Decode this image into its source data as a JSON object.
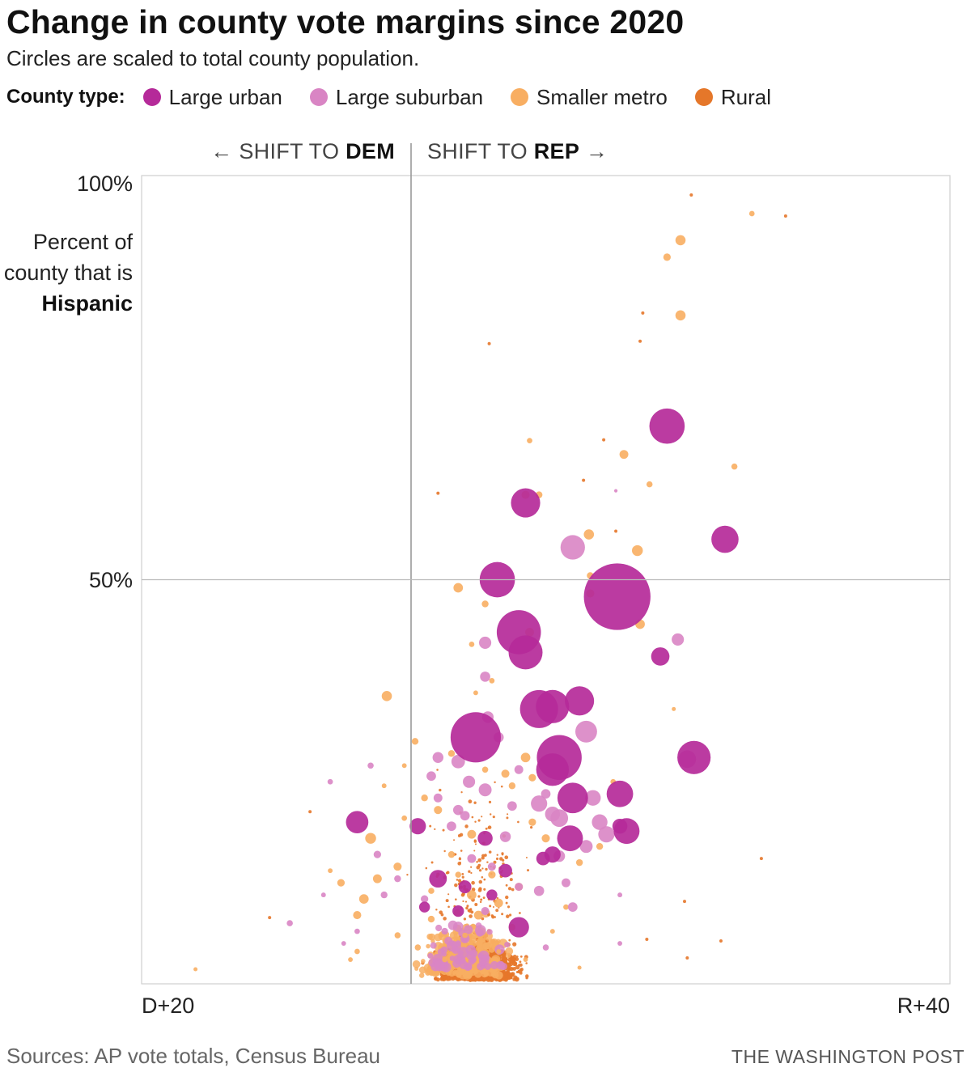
{
  "header": {
    "title": "Change in county vote margins since 2020",
    "subtitle": "Circles are scaled to total county population."
  },
  "legend": {
    "label": "County type:",
    "items": [
      {
        "label": "Large urban",
        "color": "#b52a99"
      },
      {
        "label": "Large suburban",
        "color": "#d985c4"
      },
      {
        "label": "Smaller metro",
        "color": "#f8ae62"
      },
      {
        "label": "Rural",
        "color": "#e5772a"
      }
    ]
  },
  "annotations": {
    "shift_dem_prefix": "← SHIFT TO ",
    "shift_dem_bold": "DEM",
    "shift_rep_prefix": "SHIFT TO ",
    "shift_rep_bold": "REP",
    "shift_rep_arrow": " →"
  },
  "footer": {
    "source": "Sources: AP vote totals, Census Bureau",
    "credit": "THE WASHINGTON POST"
  },
  "chart_data": {
    "type": "scatter",
    "title": "Change in county vote margins since 2020",
    "subtitle": "Circles are scaled to total county population.",
    "ylabel_pre": "Percent of county that is ",
    "ylabel_bold": "Hispanic",
    "xlim": [
      -20,
      40
    ],
    "ylim": [
      0,
      100
    ],
    "x_ticks": [
      {
        "value": -20,
        "label": "D+20"
      },
      {
        "value": 40,
        "label": "R+40"
      }
    ],
    "y_ticks": [
      {
        "value": 100,
        "label": "100%"
      },
      {
        "value": 50,
        "label": "50%"
      }
    ],
    "reference_lines": {
      "x": 0,
      "y": 50
    },
    "size_scale": "area proportional to total county population",
    "series": [
      {
        "name": "Large urban",
        "color": "#b52a99",
        "points": [
          [
            15.3,
            47.9,
            9.8
          ],
          [
            8.0,
            43.5,
            6.5
          ],
          [
            19.0,
            69.0,
            5.2
          ],
          [
            6.4,
            50.0,
            5.2
          ],
          [
            8.5,
            41.0,
            5.0
          ],
          [
            4.8,
            30.5,
            7.4
          ],
          [
            9.5,
            34.0,
            5.6
          ],
          [
            10.5,
            34.3,
            4.9
          ],
          [
            11.0,
            28.0,
            6.6
          ],
          [
            10.5,
            26.5,
            4.8
          ],
          [
            12.0,
            23.0,
            4.5
          ],
          [
            21.0,
            28.0,
            4.9
          ],
          [
            23.3,
            55.0,
            4.0
          ],
          [
            8.5,
            59.5,
            4.3
          ],
          [
            15.5,
            23.5,
            3.9
          ],
          [
            16.0,
            18.9,
            3.8
          ],
          [
            18.5,
            40.5,
            2.7
          ],
          [
            -4.0,
            20.0,
            3.3
          ],
          [
            11.8,
            18.0,
            3.8
          ],
          [
            12.5,
            35.0,
            4.3
          ],
          [
            10.5,
            16.0,
            2.4
          ],
          [
            8.0,
            7.0,
            3.0
          ],
          [
            0.5,
            19.5,
            2.4
          ],
          [
            5.5,
            18.0,
            2.2
          ],
          [
            2.0,
            13.0,
            2.6
          ],
          [
            7.0,
            14.0,
            2.0
          ],
          [
            15.5,
            19.5,
            2.2
          ],
          [
            9.8,
            15.5,
            2.0
          ],
          [
            4.0,
            12.0,
            1.9
          ],
          [
            6.0,
            11.0,
            1.6
          ],
          [
            1.0,
            9.5,
            1.6
          ],
          [
            3.5,
            9.0,
            1.7
          ]
        ]
      },
      {
        "name": "Large suburban",
        "color": "#d985c4",
        "points": [
          [
            12.0,
            54.0,
            3.6
          ],
          [
            13.0,
            31.2,
            3.2
          ],
          [
            20.5,
            27.8,
            2.6
          ],
          [
            19.8,
            42.6,
            1.8
          ],
          [
            14.0,
            20.0,
            2.3
          ],
          [
            13.5,
            23.0,
            2.3
          ],
          [
            10.5,
            21.0,
            2.2
          ],
          [
            14.5,
            18.5,
            2.4
          ],
          [
            11.0,
            20.5,
            2.6
          ],
          [
            9.5,
            22.3,
            2.4
          ],
          [
            5.5,
            24.0,
            1.9
          ],
          [
            3.5,
            27.5,
            2.0
          ],
          [
            4.3,
            25.0,
            1.8
          ],
          [
            2.0,
            28.0,
            1.6
          ],
          [
            1.5,
            25.7,
            1.4
          ],
          [
            5.5,
            42.2,
            1.8
          ],
          [
            5.5,
            38.0,
            1.5
          ],
          [
            5.7,
            33.0,
            1.7
          ],
          [
            13.0,
            17.0,
            1.9
          ],
          [
            11.0,
            15.8,
            1.7
          ],
          [
            9.5,
            11.5,
            1.5
          ],
          [
            7.0,
            18.2,
            1.6
          ],
          [
            3.5,
            21.5,
            1.5
          ],
          [
            2.0,
            23.0,
            1.3
          ],
          [
            4.0,
            20.8,
            1.4
          ],
          [
            12.0,
            9.5,
            1.4
          ],
          [
            11.5,
            12.5,
            1.3
          ],
          [
            -3.0,
            27.0,
            0.9
          ],
          [
            -6.0,
            25.0,
            0.8
          ],
          [
            -9.0,
            7.5,
            0.9
          ],
          [
            -2.5,
            16.0,
            1.1
          ],
          [
            -1.0,
            13.0,
            1.0
          ],
          [
            8.0,
            26.5,
            1.3
          ],
          [
            6.5,
            30.5,
            1.5
          ],
          [
            3.0,
            19.5,
            1.4
          ],
          [
            7.5,
            22.0,
            1.4
          ],
          [
            10.0,
            23.5,
            1.4
          ],
          [
            4.5,
            15.5,
            1.3
          ],
          [
            6.0,
            14.5,
            1.2
          ],
          [
            8.0,
            12.0,
            1.2
          ],
          [
            5.5,
            9.0,
            1.2
          ],
          [
            1.0,
            10.5,
            1.1
          ],
          [
            2.5,
            6.5,
            1.0
          ],
          [
            -2.0,
            11.0,
            1.0
          ],
          [
            -4.0,
            6.5,
            0.8
          ],
          [
            -6.5,
            11.0,
            0.7
          ],
          [
            15.5,
            5.0,
            0.7
          ],
          [
            15.5,
            11.0,
            0.7
          ],
          [
            15.2,
            61.0,
            0.5
          ],
          [
            10.0,
            4.5,
            0.9
          ],
          [
            3.5,
            5.0,
            0.9
          ],
          [
            -5.0,
            5.0,
            0.7
          ]
        ]
      },
      {
        "name": "Smaller metro",
        "color": "#f8ae62",
        "points": [
          [
            25.3,
            95.3,
            0.8
          ],
          [
            20.0,
            92.0,
            1.5
          ],
          [
            19.0,
            89.9,
            1.1
          ],
          [
            20.0,
            82.7,
            1.5
          ],
          [
            17.0,
            44.5,
            1.4
          ],
          [
            16.8,
            53.6,
            1.6
          ],
          [
            13.2,
            55.6,
            1.5
          ],
          [
            15.8,
            65.5,
            1.3
          ],
          [
            17.7,
            61.8,
            0.9
          ],
          [
            24.0,
            64.0,
            0.9
          ],
          [
            8.5,
            60.5,
            1.2
          ],
          [
            9.5,
            60.5,
            1.0
          ],
          [
            8.8,
            67.2,
            0.8
          ],
          [
            13.3,
            50.5,
            1.0
          ],
          [
            13.3,
            48.3,
            1.2
          ],
          [
            3.5,
            49.0,
            1.4
          ],
          [
            5.5,
            47.0,
            1.0
          ],
          [
            8.8,
            43.5,
            1.3
          ],
          [
            -1.8,
            35.6,
            1.5
          ],
          [
            19.5,
            34.0,
            0.6
          ],
          [
            15.0,
            25.0,
            0.8
          ],
          [
            8.5,
            28.0,
            1.4
          ],
          [
            7.0,
            26.0,
            1.2
          ],
          [
            7.5,
            24.5,
            1.0
          ],
          [
            9.0,
            25.5,
            1.1
          ],
          [
            5.5,
            26.5,
            0.9
          ],
          [
            3.0,
            28.5,
            1.0
          ],
          [
            6.0,
            37.5,
            0.8
          ],
          [
            0.3,
            30.0,
            1.0
          ],
          [
            -3.0,
            18.0,
            1.6
          ],
          [
            -2.5,
            13.0,
            1.3
          ],
          [
            -3.5,
            10.5,
            1.4
          ],
          [
            -1.0,
            14.5,
            1.2
          ],
          [
            -4.0,
            8.5,
            1.2
          ],
          [
            -5.2,
            12.5,
            1.1
          ],
          [
            -16.0,
            1.8,
            0.6
          ],
          [
            4.5,
            11.0,
            1.4
          ],
          [
            5.0,
            8.5,
            1.3
          ],
          [
            6.5,
            10.0,
            1.3
          ],
          [
            8.0,
            12.0,
            1.2
          ],
          [
            2.0,
            21.5,
            1.2
          ],
          [
            4.5,
            18.5,
            1.3
          ],
          [
            1.0,
            23.0,
            1.0
          ],
          [
            10.0,
            18.0,
            1.2
          ],
          [
            12.5,
            15.0,
            1.0
          ],
          [
            14.0,
            17.0,
            1.0
          ],
          [
            9.0,
            20.0,
            1.1
          ],
          [
            3.0,
            16.0,
            1.0
          ],
          [
            6.0,
            13.5,
            1.1
          ],
          [
            7.5,
            7.0,
            1.0
          ],
          [
            1.5,
            8.0,
            1.0
          ],
          [
            -1.0,
            6.0,
            0.9
          ],
          [
            -4.0,
            4.0,
            0.8
          ],
          [
            -0.5,
            20.5,
            0.8
          ],
          [
            -6.0,
            14.0,
            0.7
          ],
          [
            -2.0,
            24.5,
            0.7
          ],
          [
            -0.5,
            27.0,
            0.7
          ],
          [
            2.5,
            3.0,
            0.8
          ],
          [
            0.5,
            4.5,
            0.9
          ],
          [
            6.5,
            4.0,
            0.7
          ],
          [
            10.5,
            6.5,
            0.7
          ],
          [
            4.0,
            6.0,
            0.8
          ],
          [
            8.5,
            3.0,
            0.7
          ],
          [
            12.5,
            2.0,
            0.6
          ],
          [
            -4.5,
            3.0,
            0.7
          ],
          [
            1.5,
            11.5,
            0.9
          ],
          [
            3.5,
            13.5,
            0.9
          ],
          [
            11.5,
            9.5,
            0.8
          ],
          [
            4.5,
            42.0,
            0.8
          ],
          [
            4.8,
            36.0,
            0.7
          ]
        ]
      },
      {
        "name": "Rural",
        "color": "#e5772a",
        "points": [
          [
            20.8,
            97.6,
            0.28
          ],
          [
            27.8,
            95.0,
            0.3
          ],
          [
            17.0,
            79.5,
            0.3
          ],
          [
            17.2,
            83.0,
            0.3
          ],
          [
            5.8,
            79.2,
            0.3
          ],
          [
            14.3,
            67.3,
            0.3
          ],
          [
            12.8,
            62.3,
            0.25
          ],
          [
            2.0,
            60.7,
            0.3
          ],
          [
            15.2,
            56.0,
            0.3
          ],
          [
            26.0,
            15.5,
            0.3
          ],
          [
            20.3,
            10.2,
            0.38
          ],
          [
            20.5,
            3.2,
            0.32
          ],
          [
            23.0,
            5.3,
            0.3
          ],
          [
            17.5,
            5.5,
            0.32
          ],
          [
            -7.5,
            21.3,
            0.28
          ],
          [
            -10.5,
            8.2,
            0.25
          ]
        ]
      }
    ]
  }
}
